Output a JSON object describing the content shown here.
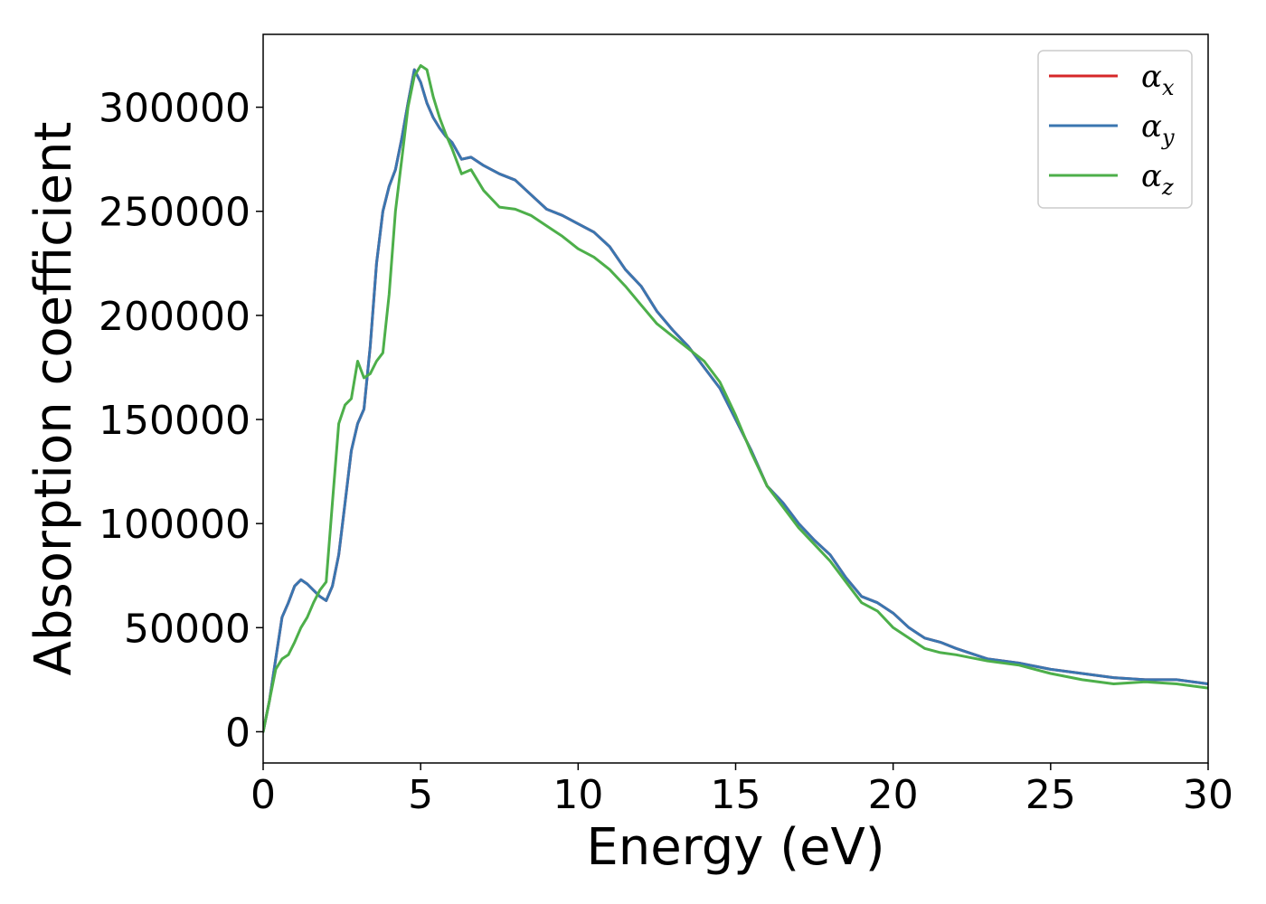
{
  "chart_data": {
    "type": "line",
    "title": "",
    "xlabel": "Energy (eV)",
    "ylabel": "Absorption coefficient",
    "xlim": [
      0,
      30
    ],
    "ylim": [
      -15000,
      335000
    ],
    "xticks": [
      0,
      5,
      10,
      15,
      20,
      25,
      30
    ],
    "yticks": [
      0,
      50000,
      100000,
      150000,
      200000,
      250000,
      300000
    ],
    "grid": false,
    "legend_position": "top-right",
    "series": [
      {
        "name": "α_x",
        "label_base": "α",
        "label_sub": "x",
        "color": "#d62728",
        "x": [
          0,
          0.2,
          0.4,
          0.6,
          0.8,
          1.0,
          1.2,
          1.4,
          1.6,
          1.8,
          2.0,
          2.2,
          2.4,
          2.6,
          2.8,
          3.0,
          3.2,
          3.4,
          3.6,
          3.8,
          4.0,
          4.2,
          4.4,
          4.6,
          4.8,
          5.0,
          5.2,
          5.4,
          5.6,
          5.8,
          6.0,
          6.3,
          6.6,
          7.0,
          7.5,
          8.0,
          8.5,
          9.0,
          9.5,
          10.0,
          10.5,
          11.0,
          11.5,
          12.0,
          12.5,
          13.0,
          13.5,
          14.0,
          14.5,
          15.0,
          15.5,
          16.0,
          16.5,
          17.0,
          17.5,
          18.0,
          18.5,
          19.0,
          19.5,
          20.0,
          20.5,
          21.0,
          21.5,
          22.0,
          23.0,
          24.0,
          25.0,
          26.0,
          27.0,
          28.0,
          29.0,
          30.0
        ],
        "values": [
          0,
          15000,
          35000,
          55000,
          62000,
          70000,
          73000,
          71000,
          68000,
          65000,
          63000,
          70000,
          85000,
          110000,
          135000,
          148000,
          155000,
          185000,
          225000,
          250000,
          262000,
          270000,
          285000,
          302000,
          318000,
          312000,
          302000,
          295000,
          290000,
          286000,
          283000,
          275000,
          276000,
          272000,
          268000,
          265000,
          258000,
          251000,
          248000,
          244000,
          240000,
          233000,
          222000,
          214000,
          202000,
          193000,
          185000,
          175000,
          165000,
          150000,
          135000,
          118000,
          110000,
          100000,
          92000,
          85000,
          74000,
          65000,
          62000,
          57000,
          50000,
          45000,
          43000,
          40000,
          35000,
          33000,
          30000,
          28000,
          26000,
          25000,
          25000,
          23000
        ]
      },
      {
        "name": "α_y",
        "label_base": "α",
        "label_sub": "y",
        "color": "#3a76b0",
        "x": [
          0,
          0.2,
          0.4,
          0.6,
          0.8,
          1.0,
          1.2,
          1.4,
          1.6,
          1.8,
          2.0,
          2.2,
          2.4,
          2.6,
          2.8,
          3.0,
          3.2,
          3.4,
          3.6,
          3.8,
          4.0,
          4.2,
          4.4,
          4.6,
          4.8,
          5.0,
          5.2,
          5.4,
          5.6,
          5.8,
          6.0,
          6.3,
          6.6,
          7.0,
          7.5,
          8.0,
          8.5,
          9.0,
          9.5,
          10.0,
          10.5,
          11.0,
          11.5,
          12.0,
          12.5,
          13.0,
          13.5,
          14.0,
          14.5,
          15.0,
          15.5,
          16.0,
          16.5,
          17.0,
          17.5,
          18.0,
          18.5,
          19.0,
          19.5,
          20.0,
          20.5,
          21.0,
          21.5,
          22.0,
          23.0,
          24.0,
          25.0,
          26.0,
          27.0,
          28.0,
          29.0,
          30.0
        ],
        "values": [
          0,
          15000,
          35000,
          55000,
          62000,
          70000,
          73000,
          71000,
          68000,
          65000,
          63000,
          70000,
          85000,
          110000,
          135000,
          148000,
          155000,
          185000,
          225000,
          250000,
          262000,
          270000,
          285000,
          302000,
          318000,
          312000,
          302000,
          295000,
          290000,
          286000,
          283000,
          275000,
          276000,
          272000,
          268000,
          265000,
          258000,
          251000,
          248000,
          244000,
          240000,
          233000,
          222000,
          214000,
          202000,
          193000,
          185000,
          175000,
          165000,
          150000,
          135000,
          118000,
          110000,
          100000,
          92000,
          85000,
          74000,
          65000,
          62000,
          57000,
          50000,
          45000,
          43000,
          40000,
          35000,
          33000,
          30000,
          28000,
          26000,
          25000,
          25000,
          23000
        ]
      },
      {
        "name": "α_z",
        "label_base": "α",
        "label_sub": "z",
        "color": "#4daf4a",
        "x": [
          0,
          0.2,
          0.4,
          0.6,
          0.8,
          1.0,
          1.2,
          1.4,
          1.6,
          1.8,
          2.0,
          2.2,
          2.4,
          2.6,
          2.8,
          3.0,
          3.2,
          3.4,
          3.6,
          3.8,
          4.0,
          4.2,
          4.4,
          4.6,
          4.8,
          5.0,
          5.2,
          5.4,
          5.6,
          5.8,
          6.0,
          6.3,
          6.6,
          7.0,
          7.5,
          8.0,
          8.5,
          9.0,
          9.5,
          10.0,
          10.5,
          11.0,
          11.5,
          12.0,
          12.5,
          13.0,
          13.5,
          14.0,
          14.5,
          15.0,
          15.5,
          16.0,
          16.5,
          17.0,
          17.5,
          18.0,
          18.5,
          19.0,
          19.5,
          20.0,
          20.5,
          21.0,
          21.5,
          22.0,
          23.0,
          24.0,
          25.0,
          26.0,
          27.0,
          28.0,
          29.0,
          30.0
        ],
        "values": [
          0,
          15000,
          30000,
          35000,
          37000,
          43000,
          50000,
          55000,
          62000,
          68000,
          72000,
          110000,
          148000,
          157000,
          160000,
          178000,
          170000,
          172000,
          178000,
          182000,
          210000,
          250000,
          275000,
          300000,
          315000,
          320000,
          318000,
          305000,
          295000,
          287000,
          280000,
          268000,
          270000,
          260000,
          252000,
          251000,
          248000,
          243000,
          238000,
          232000,
          228000,
          222000,
          214000,
          205000,
          196000,
          190000,
          184000,
          178000,
          168000,
          152000,
          134000,
          118000,
          108000,
          98000,
          90000,
          82000,
          72000,
          62000,
          58000,
          50000,
          45000,
          40000,
          38000,
          37000,
          34000,
          32000,
          28000,
          25000,
          23000,
          24000,
          23000,
          21000
        ]
      }
    ]
  }
}
